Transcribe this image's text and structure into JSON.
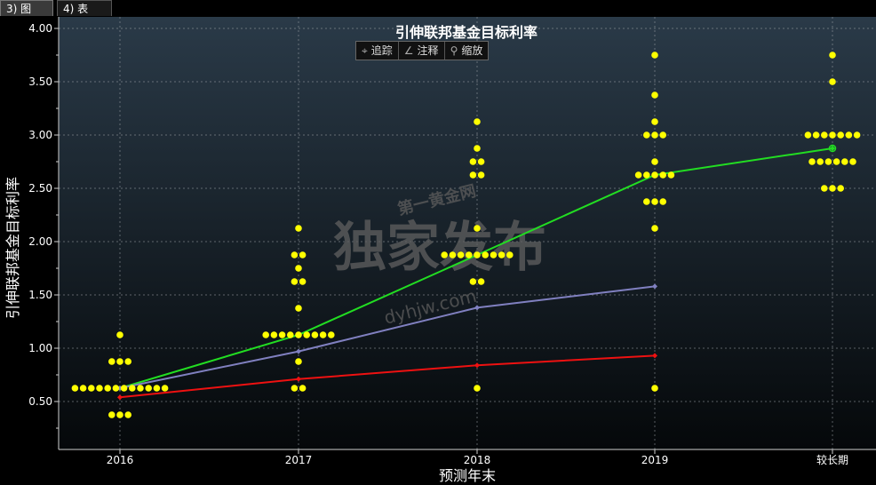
{
  "tabs": [
    {
      "label": "3) 图"
    },
    {
      "label": "4) 表"
    }
  ],
  "toolbar": {
    "track": "追踪",
    "annotate": "注释",
    "zoom": "缩放"
  },
  "watermark": {
    "brand": "第一黄金网",
    "main": "独家发布",
    "url": "dyhjw.com"
  },
  "chart_data": {
    "type": "scatter",
    "title": "引伸联邦基金目标利率",
    "xlabel": "预测年末",
    "ylabel": "引伸联邦基金目标利率",
    "categories": [
      "2016",
      "2017",
      "2018",
      "2019",
      "较长期"
    ],
    "ylim": [
      0.0,
      4.0
    ],
    "yticks": [
      "0.50",
      "1.00",
      "1.50",
      "2.00",
      "2.50",
      "3.00",
      "3.50",
      "4.00"
    ],
    "grid": true,
    "dot_plot": {
      "color": "#ffff00",
      "points": [
        {
          "x": "2016",
          "y": 1.125,
          "n": 1
        },
        {
          "x": "2016",
          "y": 0.875,
          "n": 3
        },
        {
          "x": "2016",
          "y": 0.625,
          "n": 12
        },
        {
          "x": "2016",
          "y": 0.375,
          "n": 3
        },
        {
          "x": "2017",
          "y": 2.125,
          "n": 1
        },
        {
          "x": "2017",
          "y": 1.875,
          "n": 2
        },
        {
          "x": "2017",
          "y": 1.75,
          "n": 1
        },
        {
          "x": "2017",
          "y": 1.625,
          "n": 2
        },
        {
          "x": "2017",
          "y": 1.375,
          "n": 1
        },
        {
          "x": "2017",
          "y": 1.125,
          "n": 9
        },
        {
          "x": "2017",
          "y": 0.875,
          "n": 1
        },
        {
          "x": "2017",
          "y": 0.625,
          "n": 2
        },
        {
          "x": "2018",
          "y": 3.125,
          "n": 1
        },
        {
          "x": "2018",
          "y": 2.875,
          "n": 1
        },
        {
          "x": "2018",
          "y": 2.75,
          "n": 2
        },
        {
          "x": "2018",
          "y": 2.625,
          "n": 2
        },
        {
          "x": "2018",
          "y": 2.125,
          "n": 1
        },
        {
          "x": "2018",
          "y": 1.875,
          "n": 9
        },
        {
          "x": "2018",
          "y": 1.625,
          "n": 2
        },
        {
          "x": "2018",
          "y": 0.625,
          "n": 1
        },
        {
          "x": "2019",
          "y": 3.75,
          "n": 1
        },
        {
          "x": "2019",
          "y": 3.375,
          "n": 1
        },
        {
          "x": "2019",
          "y": 3.125,
          "n": 1
        },
        {
          "x": "2019",
          "y": 3.0,
          "n": 3
        },
        {
          "x": "2019",
          "y": 2.75,
          "n": 1
        },
        {
          "x": "2019",
          "y": 2.625,
          "n": 5
        },
        {
          "x": "2019",
          "y": 2.375,
          "n": 3
        },
        {
          "x": "2019",
          "y": 2.125,
          "n": 1
        },
        {
          "x": "2019",
          "y": 0.625,
          "n": 1
        },
        {
          "x": "较长期",
          "y": 3.75,
          "n": 1
        },
        {
          "x": "较长期",
          "y": 3.5,
          "n": 1
        },
        {
          "x": "较长期",
          "y": 3.0,
          "n": 7
        },
        {
          "x": "较长期",
          "y": 2.75,
          "n": 6
        },
        {
          "x": "较长期",
          "y": 2.5,
          "n": 3
        }
      ]
    },
    "series": [
      {
        "color": "#22dd22",
        "values": [
          0.625,
          1.125,
          1.875,
          2.625,
          2.875
        ]
      },
      {
        "color": "#8080c0",
        "values": [
          0.625,
          0.97,
          1.38,
          1.58,
          null
        ]
      },
      {
        "color": "#ee1111",
        "values": [
          0.54,
          0.71,
          0.84,
          0.93,
          null
        ]
      }
    ]
  }
}
